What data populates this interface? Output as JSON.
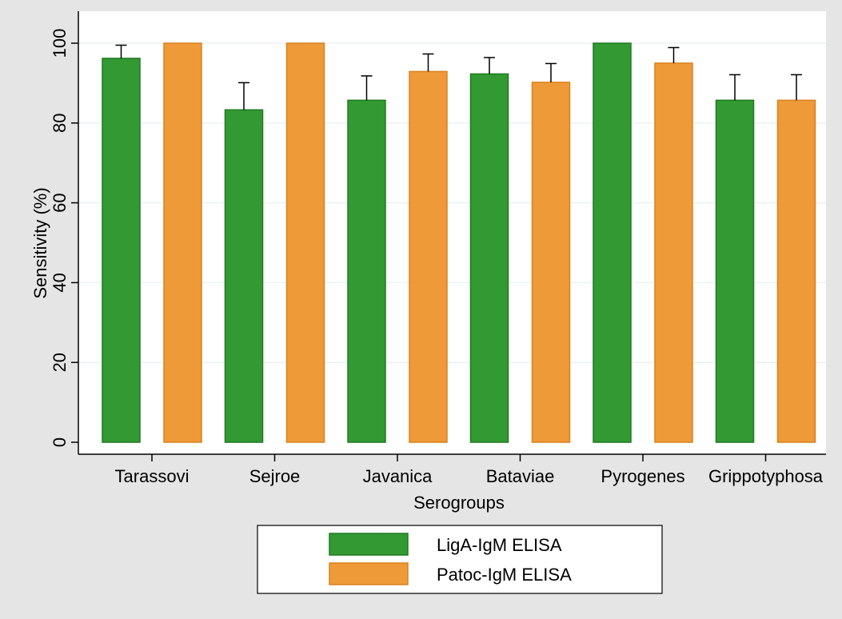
{
  "chart_data": {
    "type": "bar",
    "title": "",
    "xlabel": "Serogroups",
    "ylabel": "Sensitivity (%)",
    "ylim": [
      0,
      100
    ],
    "yticks": [
      0,
      20,
      40,
      60,
      80,
      100
    ],
    "grid": true,
    "legend_position": "bottom",
    "categories": [
      "Tarassovi",
      "Sejroe",
      "Javanica",
      "Bataviae",
      "Pyrogenes",
      "Grippotyphosa"
    ],
    "series": [
      {
        "name": "LigA-IgM ELISA",
        "color": "#339933",
        "values": [
          96.2,
          83.3,
          85.7,
          92.3,
          100,
          85.7
        ],
        "error_upper": [
          99.5,
          90.1,
          91.8,
          96.4,
          100,
          92.1
        ]
      },
      {
        "name": "Patoc-IgM ELISA",
        "color": "#ee9a39",
        "values": [
          100,
          100,
          92.9,
          90.2,
          95.0,
          85.7
        ],
        "error_upper": [
          100,
          100,
          97.3,
          94.9,
          98.9,
          92.1
        ]
      }
    ]
  },
  "colors": {
    "background": "#e5e5e5",
    "plot_area": "#ffffff",
    "grid": "#eaf2f3",
    "bar_edge_series_0": "#1f7a1f",
    "bar_edge_series_1": "#d9821f"
  }
}
